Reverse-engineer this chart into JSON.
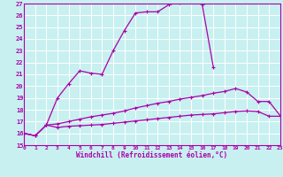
{
  "xlabel": "Windchill (Refroidissement éolien,°C)",
  "xlim": [
    0,
    23
  ],
  "ylim": [
    15,
    27
  ],
  "bg_color": "#c8f0f0",
  "line_color": "#aa00aa",
  "grid_color": "#ffffff",
  "line1_x": [
    0,
    1,
    2,
    3,
    4,
    5,
    6,
    7,
    8,
    9,
    10,
    11,
    12,
    13,
    14,
    15,
    16,
    17
  ],
  "line1_y": [
    16.0,
    15.8,
    16.7,
    19.0,
    20.2,
    21.3,
    21.1,
    21.0,
    23.0,
    24.7,
    26.2,
    26.3,
    26.3,
    26.9,
    27.1,
    27.2,
    26.9,
    21.6
  ],
  "line2_x": [
    0,
    1,
    2,
    3,
    4,
    5,
    6,
    7,
    8,
    9,
    10,
    11,
    12,
    13,
    14,
    15,
    16,
    17,
    18,
    19,
    20,
    21,
    22,
    23
  ],
  "line2_y": [
    16.0,
    15.8,
    16.7,
    16.8,
    17.0,
    17.2,
    17.4,
    17.55,
    17.7,
    17.9,
    18.15,
    18.35,
    18.55,
    18.7,
    18.9,
    19.05,
    19.2,
    19.4,
    19.55,
    19.8,
    19.5,
    18.7,
    18.7,
    17.5
  ],
  "line3_x": [
    0,
    1,
    2,
    3,
    4,
    5,
    6,
    7,
    8,
    9,
    10,
    11,
    12,
    13,
    14,
    15,
    16,
    17,
    18,
    19,
    20,
    21,
    22,
    23
  ],
  "line3_y": [
    16.0,
    15.8,
    16.7,
    16.5,
    16.6,
    16.65,
    16.7,
    16.75,
    16.85,
    16.95,
    17.05,
    17.15,
    17.25,
    17.35,
    17.45,
    17.55,
    17.6,
    17.65,
    17.75,
    17.85,
    17.9,
    17.85,
    17.45,
    17.45
  ]
}
